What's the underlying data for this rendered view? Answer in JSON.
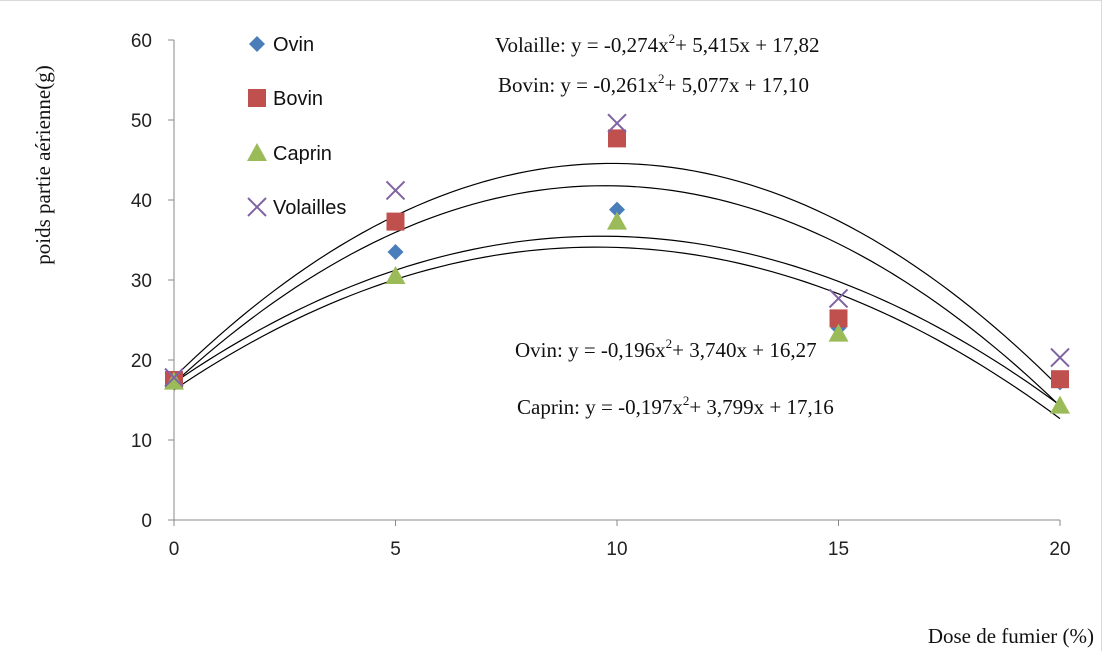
{
  "chart_data": {
    "type": "scatter",
    "title": "",
    "xlabel": "Dose de fumier (%)",
    "ylabel": "poids partie aérienne(g)",
    "x": [
      0,
      5,
      10,
      15,
      20
    ],
    "xlim": [
      0,
      20
    ],
    "ylim": [
      0,
      60
    ],
    "xticks": [
      "0",
      "5",
      "10",
      "15",
      "20"
    ],
    "yticks": [
      "0",
      "10",
      "20",
      "30",
      "40",
      "50",
      "60"
    ],
    "grid": false,
    "legend_position": "top-left",
    "series": [
      {
        "name": "Ovin",
        "marker": "diamond",
        "color": "#4a7ebb",
        "values": [
          17.5,
          33.5,
          38.8,
          24.0,
          17.2
        ],
        "trend": {
          "a": -0.196,
          "b": 3.74,
          "c": 16.27
        }
      },
      {
        "name": "Bovin",
        "marker": "square",
        "color": "#c0504d",
        "values": [
          17.5,
          37.3,
          47.7,
          25.2,
          17.6
        ],
        "trend": {
          "a": -0.261,
          "b": 5.077,
          "c": 17.1
        }
      },
      {
        "name": "Caprin",
        "marker": "triangle",
        "color": "#9bbb59",
        "values": [
          17.3,
          30.5,
          37.3,
          23.3,
          14.3
        ],
        "trend": {
          "a": -0.197,
          "b": 3.799,
          "c": 17.16
        }
      },
      {
        "name": "Volailles",
        "marker": "x",
        "color": "#8064a2",
        "values": [
          17.8,
          41.2,
          49.6,
          27.7,
          20.3
        ],
        "trend": {
          "a": -0.274,
          "b": 5.415,
          "c": 17.82
        }
      }
    ],
    "annotations": [
      {
        "prefix": "Volaille: y = -0,274x",
        "suffix": "+ 5,415x + 17,82"
      },
      {
        "prefix": "Bovin: y = -0,261x",
        "suffix": "+ 5,077x + 17,10"
      },
      {
        "prefix": "Ovin: y = -0,196x",
        "suffix": "+ 3,740x + 16,27"
      },
      {
        "prefix": "Caprin: y = -0,197x",
        "suffix": "+ 3,799x + 17,16"
      }
    ],
    "superscript": "2"
  }
}
